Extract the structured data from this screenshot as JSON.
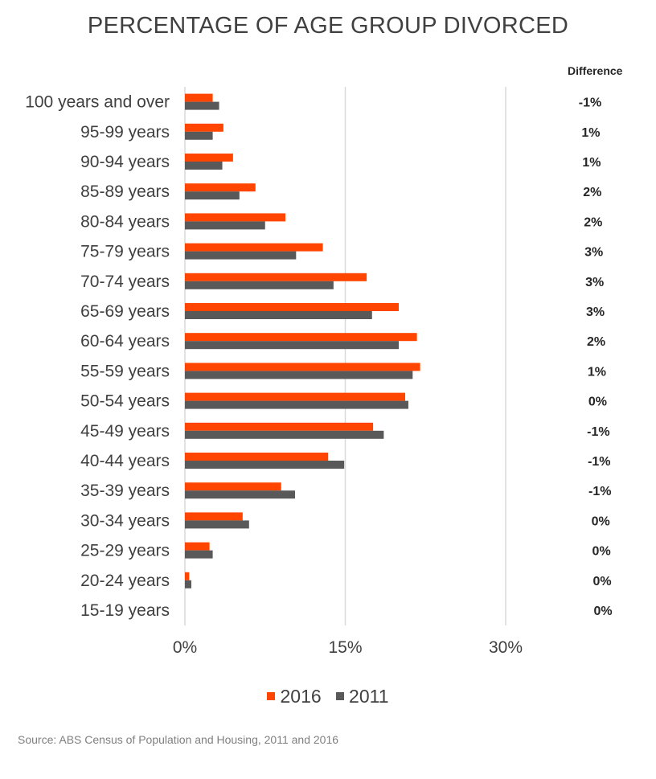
{
  "title": "PERCENTAGE OF AGE GROUP DIVORCED",
  "difference_header": "Difference",
  "source": "Source: ABS Census of Population and Housing, 2011 and 2016",
  "colors": {
    "s2016": "#FF4500",
    "s2011": "#595959",
    "grid": "#d9d9d9",
    "text": "#404040"
  },
  "legend": [
    {
      "label": "2016",
      "color": "#FF4500"
    },
    {
      "label": "2011",
      "color": "#595959"
    }
  ],
  "chart_data": {
    "type": "bar",
    "orientation": "horizontal",
    "title": "PERCENTAGE OF AGE GROUP DIVORCED",
    "categories": [
      "100 years and over",
      "95-99 years",
      "90-94 years",
      "85-89 years",
      "80-84 years",
      "75-79 years",
      "70-74 years",
      "65-69 years",
      "60-64 years",
      "55-59 years",
      "50-54 years",
      "45-49 years",
      "40-44 years",
      "35-39 years",
      "30-34 years",
      "25-29 years",
      "20-24 years",
      "15-19 years"
    ],
    "series": [
      {
        "name": "2016",
        "values": [
          2.6,
          3.6,
          4.5,
          6.6,
          9.4,
          12.9,
          17.0,
          20.0,
          21.7,
          22.0,
          20.6,
          17.6,
          13.4,
          9.0,
          5.4,
          2.3,
          0.4,
          0.0
        ]
      },
      {
        "name": "2011",
        "values": [
          3.2,
          2.6,
          3.5,
          5.1,
          7.5,
          10.4,
          13.9,
          17.5,
          20.0,
          21.3,
          20.9,
          18.6,
          14.9,
          10.3,
          6.0,
          2.6,
          0.6,
          0.0
        ]
      }
    ],
    "difference": [
      "-1%",
      "1%",
      "1%",
      "2%",
      "2%",
      "3%",
      "3%",
      "3%",
      "2%",
      "1%",
      "0%",
      "-1%",
      "-1%",
      "-1%",
      "0%",
      "0%",
      "0%",
      "0%"
    ],
    "xticks": [
      "0%",
      "15%",
      "30%"
    ],
    "xlim": [
      0,
      30
    ],
    "grid": true,
    "legend_position": "bottom"
  }
}
